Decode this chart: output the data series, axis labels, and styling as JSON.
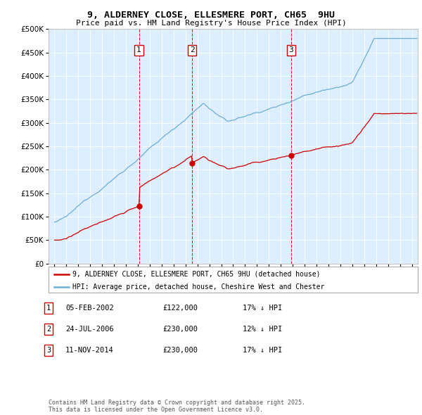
{
  "title_line1": "9, ALDERNEY CLOSE, ELLESMERE PORT, CH65  9HU",
  "title_line2": "Price paid vs. HM Land Registry's House Price Index (HPI)",
  "legend_line1": "9, ALDERNEY CLOSE, ELLESMERE PORT, CH65 9HU (detached house)",
  "legend_line2": "HPI: Average price, detached house, Cheshire West and Chester",
  "footnote": "Contains HM Land Registry data © Crown copyright and database right 2025.\nThis data is licensed under the Open Government Licence v3.0.",
  "sales": [
    {
      "num": 1,
      "date": "05-FEB-2002",
      "price": "£122,000",
      "pct": "17% ↓ HPI"
    },
    {
      "num": 2,
      "date": "24-JUL-2006",
      "price": "£230,000",
      "pct": "12% ↓ HPI"
    },
    {
      "num": 3,
      "date": "11-NOV-2014",
      "price": "£230,000",
      "pct": "17% ↓ HPI"
    }
  ],
  "sale_dates_decimal": [
    2002.09,
    2006.56,
    2014.86
  ],
  "sale_prices": [
    122000,
    230000,
    230000
  ],
  "hpi_color": "#6baed6",
  "price_color": "#cc0000",
  "background_color": "#ddeeff",
  "ylim": [
    0,
    500000
  ],
  "yticks": [
    0,
    50000,
    100000,
    150000,
    200000,
    250000,
    300000,
    350000,
    400000,
    450000,
    500000
  ],
  "xlim_start": 1994.5,
  "xlim_end": 2025.5
}
